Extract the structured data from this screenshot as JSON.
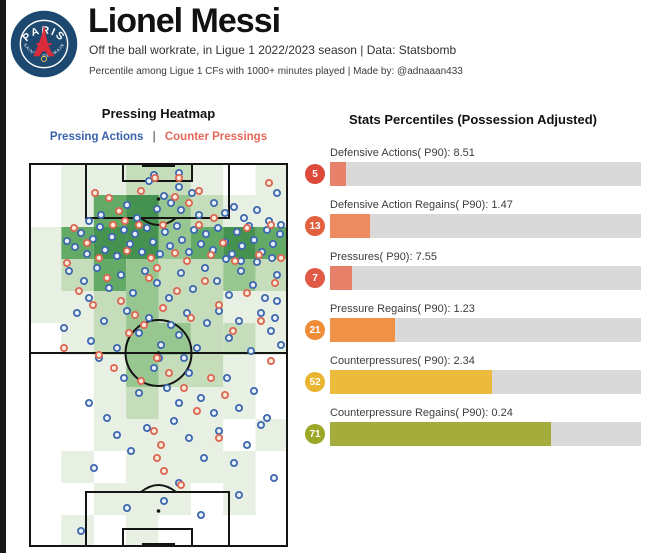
{
  "header": {
    "title": "Lionel Messi",
    "subtitle": "Off the ball workrate, in Ligue 1 2022/2023 season | Data: Statsbomb",
    "tagline": "Percentile among Ligue 1 CFs with 1000+ minutes played | Made by: @adnaaan433",
    "crest": {
      "club": "Paris Saint-Germain",
      "top_text": "PARIS",
      "bottom_text": "SAINT - GERMAIN",
      "navy": "#1d4971",
      "red": "#da2c3b"
    }
  },
  "heatmap_section": {
    "title": "Pressing Heatmap",
    "legend": {
      "pressing_label": "Pressing Actions",
      "separator": "|",
      "counter_label": "Counter Pressings",
      "pressing_color": "#3a62ad",
      "counter_color": "#e4695a"
    }
  },
  "bars_section": {
    "title": "Stats Percentiles (Possession Adjusted)",
    "track_color": "#d9d9d9"
  },
  "chart_data": [
    {
      "type": "heatmap",
      "title": "Pressing Heatmap",
      "grid_cols": 8,
      "grid_rows": 12,
      "coord_space": [
        259,
        384
      ],
      "palette": [
        "transparent",
        "#e7f0e2",
        "#c6ddbc",
        "#98c690",
        "#63aa66",
        "#45914f"
      ],
      "intensity": [
        [
          0,
          1,
          1,
          2,
          2,
          1,
          0,
          1
        ],
        [
          0,
          1,
          4,
          5,
          3,
          2,
          1,
          1
        ],
        [
          1,
          4,
          5,
          5,
          3,
          4,
          5,
          4
        ],
        [
          1,
          2,
          4,
          3,
          2,
          2,
          3,
          2
        ],
        [
          1,
          1,
          2,
          3,
          2,
          2,
          1,
          1
        ],
        [
          0,
          1,
          2,
          3,
          3,
          2,
          2,
          1
        ],
        [
          0,
          0,
          1,
          3,
          2,
          2,
          1,
          0
        ],
        [
          0,
          0,
          1,
          2,
          1,
          1,
          1,
          0
        ],
        [
          0,
          0,
          1,
          1,
          1,
          1,
          0,
          1
        ],
        [
          0,
          1,
          0,
          1,
          1,
          1,
          1,
          0
        ],
        [
          0,
          0,
          1,
          1,
          1,
          0,
          1,
          0
        ],
        [
          0,
          1,
          0,
          1,
          0,
          0,
          0,
          0
        ]
      ],
      "series": [
        {
          "name": "Pressing Actions",
          "stroke": "#3e68ae",
          "fill": "#e8f1fa",
          "points": [
            [
              125,
              12
            ],
            [
              150,
              10
            ],
            [
              120,
              18
            ],
            [
              150,
              24
            ],
            [
              163,
              30
            ],
            [
              135,
              33
            ],
            [
              142,
              40
            ],
            [
              128,
              46
            ],
            [
              152,
              47
            ],
            [
              170,
              52
            ],
            [
              98,
              42
            ],
            [
              108,
              55
            ],
            [
              185,
              40
            ],
            [
              196,
              50
            ],
            [
              205,
              44
            ],
            [
              215,
              55
            ],
            [
              228,
              47
            ],
            [
              240,
              58
            ],
            [
              72,
              52
            ],
            [
              60,
              58
            ],
            [
              248,
              30
            ],
            [
              252,
              62
            ],
            [
              38,
              78
            ],
            [
              46,
              84
            ],
            [
              52,
              70
            ],
            [
              58,
              91
            ],
            [
              64,
              76
            ],
            [
              71,
              64
            ],
            [
              76,
              87
            ],
            [
              83,
              74
            ],
            [
              88,
              93
            ],
            [
              95,
              67
            ],
            [
              101,
              81
            ],
            [
              106,
              71
            ],
            [
              113,
              89
            ],
            [
              118,
              65
            ],
            [
              124,
              79
            ],
            [
              131,
              91
            ],
            [
              136,
              69
            ],
            [
              141,
              83
            ],
            [
              148,
              63
            ],
            [
              153,
              77
            ],
            [
              160,
              89
            ],
            [
              165,
              67
            ],
            [
              172,
              81
            ],
            [
              177,
              71
            ],
            [
              184,
              87
            ],
            [
              189,
              65
            ],
            [
              196,
              79
            ],
            [
              203,
              91
            ],
            [
              208,
              69
            ],
            [
              213,
              83
            ],
            [
              220,
              63
            ],
            [
              225,
              77
            ],
            [
              233,
              89
            ],
            [
              238,
              67
            ],
            [
              244,
              81
            ],
            [
              251,
              71
            ],
            [
              197,
              96
            ],
            [
              212,
              98
            ],
            [
              228,
              99
            ],
            [
              243,
              95
            ],
            [
              40,
              108
            ],
            [
              55,
              118
            ],
            [
              68,
              105
            ],
            [
              80,
              125
            ],
            [
              92,
              112
            ],
            [
              104,
              130
            ],
            [
              116,
              108
            ],
            [
              128,
              120
            ],
            [
              140,
              135
            ],
            [
              152,
              110
            ],
            [
              164,
              126
            ],
            [
              176,
              105
            ],
            [
              188,
              118
            ],
            [
              200,
              132
            ],
            [
              212,
              108
            ],
            [
              224,
              122
            ],
            [
              236,
              135
            ],
            [
              248,
              112
            ],
            [
              60,
              135
            ],
            [
              248,
              138
            ],
            [
              35,
              165
            ],
            [
              48,
              150
            ],
            [
              62,
              178
            ],
            [
              75,
              158
            ],
            [
              88,
              185
            ],
            [
              98,
              148
            ],
            [
              110,
              170
            ],
            [
              120,
              155
            ],
            [
              132,
              182
            ],
            [
              142,
              162
            ],
            [
              150,
              172
            ],
            [
              158,
              150
            ],
            [
              168,
              185
            ],
            [
              178,
              160
            ],
            [
              190,
              148
            ],
            [
              200,
              175
            ],
            [
              210,
              158
            ],
            [
              222,
              188
            ],
            [
              232,
              150
            ],
            [
              242,
              168
            ],
            [
              252,
              182
            ],
            [
              70,
              195
            ],
            [
              130,
              195
            ],
            [
              155,
              195
            ],
            [
              246,
              155
            ],
            [
              95,
              215
            ],
            [
              110,
              230
            ],
            [
              125,
              205
            ],
            [
              138,
              225
            ],
            [
              150,
              240
            ],
            [
              160,
              210
            ],
            [
              172,
              235
            ],
            [
              185,
              250
            ],
            [
              198,
              215
            ],
            [
              210,
              245
            ],
            [
              225,
              228
            ],
            [
              238,
              255
            ],
            [
              60,
              240
            ],
            [
              78,
              255
            ],
            [
              145,
              258
            ],
            [
              88,
              272
            ],
            [
              102,
              288
            ],
            [
              118,
              265
            ],
            [
              160,
              275
            ],
            [
              175,
              295
            ],
            [
              190,
              268
            ],
            [
              205,
              300
            ],
            [
              218,
              282
            ],
            [
              232,
              262
            ],
            [
              245,
              315
            ],
            [
              65,
              305
            ],
            [
              150,
              320
            ],
            [
              98,
              345
            ],
            [
              135,
              338
            ],
            [
              172,
              352
            ],
            [
              210,
              332
            ],
            [
              52,
              368
            ]
          ]
        },
        {
          "name": "Counter Pressings",
          "stroke": "#dd6652",
          "fill": "#f7ecd9",
          "points": [
            [
              80,
              35
            ],
            [
              90,
              48
            ],
            [
              112,
              28
            ],
            [
              126,
              15
            ],
            [
              150,
              15
            ],
            [
              146,
              34
            ],
            [
              160,
              40
            ],
            [
              170,
              28
            ],
            [
              185,
              55
            ],
            [
              96,
              58
            ],
            [
              240,
              20
            ],
            [
              66,
              30
            ],
            [
              45,
              65
            ],
            [
              58,
              80
            ],
            [
              70,
              95
            ],
            [
              84,
              62
            ],
            [
              98,
              88
            ],
            [
              110,
              62
            ],
            [
              122,
              95
            ],
            [
              134,
              62
            ],
            [
              146,
              90
            ],
            [
              158,
              98
            ],
            [
              170,
              62
            ],
            [
              182,
              92
            ],
            [
              194,
              80
            ],
            [
              206,
              98
            ],
            [
              218,
              65
            ],
            [
              230,
              92
            ],
            [
              242,
              62
            ],
            [
              252,
              95
            ],
            [
              38,
              100
            ],
            [
              128,
              105
            ],
            [
              50,
              128
            ],
            [
              64,
              142
            ],
            [
              78,
              115
            ],
            [
              92,
              138
            ],
            [
              106,
              152
            ],
            [
              120,
              115
            ],
            [
              134,
              145
            ],
            [
              148,
              128
            ],
            [
              162,
              155
            ],
            [
              176,
              118
            ],
            [
              190,
              142
            ],
            [
              204,
              168
            ],
            [
              218,
              130
            ],
            [
              232,
              158
            ],
            [
              246,
              120
            ],
            [
              100,
              170
            ],
            [
              115,
              162
            ],
            [
              70,
              192
            ],
            [
              85,
              205
            ],
            [
              112,
              218
            ],
            [
              128,
              195
            ],
            [
              140,
              210
            ],
            [
              155,
              225
            ],
            [
              168,
              248
            ],
            [
              182,
              215
            ],
            [
              196,
              232
            ],
            [
              242,
              198
            ],
            [
              35,
              185
            ],
            [
              125,
              268
            ],
            [
              132,
              282
            ],
            [
              128,
              295
            ],
            [
              135,
              308
            ],
            [
              152,
              322
            ],
            [
              190,
              275
            ]
          ]
        }
      ]
    },
    {
      "type": "bar",
      "orientation": "horizontal",
      "title": "Stats Percentiles (Possession Adjusted)",
      "categories": [
        "Defensive Actions( P90): 8.51",
        "Defensive Action Regains( P90): 1.47",
        "Pressures( P90): 7.55",
        "Pressure Regains( P90): 1.23",
        "Counterpressures( P90): 2.34",
        "Counterpressure Regains( P90): 0.24"
      ],
      "values": [
        5,
        13,
        7,
        21,
        52,
        71
      ],
      "xlim": [
        0,
        100
      ],
      "bar_colors": [
        "#e88169",
        "#ec8a60",
        "#e87f68",
        "#f09146",
        "#ecba3d",
        "#a4ad3c"
      ],
      "badge_colors": [
        "#dd4a3a",
        "#e2603f",
        "#e05a45",
        "#ef8c38",
        "#e9b42f",
        "#9aa727"
      ],
      "track_color": "#d9d9d9"
    }
  ]
}
